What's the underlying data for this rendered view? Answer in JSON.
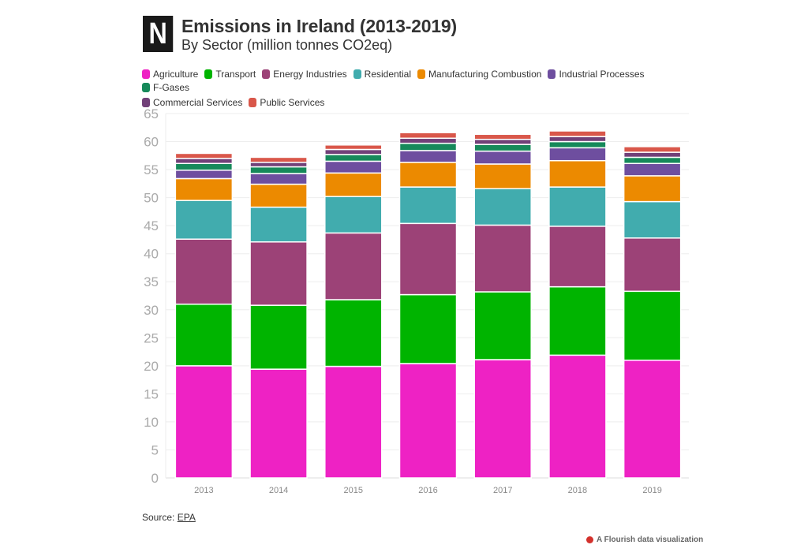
{
  "header": {
    "logo_letter": "N",
    "title": "Emissions in Ireland (2013-2019)",
    "subtitle": "By Sector (million tonnes CO2eq)"
  },
  "footer": {
    "source_prefix": "Source: ",
    "source_link": "EPA",
    "credit": "A Flourish data visualization"
  },
  "chart_data": {
    "type": "bar",
    "stacked": true,
    "title": "Emissions in Ireland (2013-2019)",
    "subtitle": "By Sector (million tonnes CO2eq)",
    "xlabel": "",
    "ylabel": "",
    "ylim": [
      0,
      65
    ],
    "yticks": [
      0,
      5,
      10,
      15,
      20,
      25,
      30,
      35,
      40,
      45,
      50,
      55,
      60,
      65
    ],
    "grid": true,
    "legend_position": "top-left",
    "categories": [
      "2013",
      "2014",
      "2015",
      "2016",
      "2017",
      "2018",
      "2019"
    ],
    "series": [
      {
        "name": "Agriculture",
        "color": "#ee22c4",
        "values": [
          20.0,
          19.4,
          19.9,
          20.4,
          21.1,
          21.9,
          21.0
        ]
      },
      {
        "name": "Transport",
        "color": "#00b400",
        "values": [
          11.0,
          11.4,
          11.9,
          12.3,
          12.1,
          12.2,
          12.3
        ]
      },
      {
        "name": "Energy Industries",
        "color": "#9c4277",
        "values": [
          11.6,
          11.3,
          11.9,
          12.7,
          11.9,
          10.8,
          9.5
        ]
      },
      {
        "name": "Residential",
        "color": "#41acae",
        "values": [
          6.9,
          6.2,
          6.5,
          6.5,
          6.5,
          7.0,
          6.5
        ]
      },
      {
        "name": "Manufacturing Combustion",
        "color": "#ec8a00",
        "values": [
          3.9,
          4.1,
          4.2,
          4.4,
          4.4,
          4.7,
          4.6
        ]
      },
      {
        "name": "Industrial Processes",
        "color": "#6e4e9f",
        "values": [
          1.5,
          1.9,
          2.1,
          2.1,
          2.3,
          2.3,
          2.2
        ]
      },
      {
        "name": "F-Gases",
        "color": "#16895a",
        "values": [
          1.2,
          1.2,
          1.2,
          1.3,
          1.2,
          1.1,
          1.1
        ]
      },
      {
        "name": "Commercial Services",
        "color": "#714078",
        "values": [
          0.9,
          0.8,
          0.9,
          0.9,
          0.9,
          0.9,
          0.9
        ]
      },
      {
        "name": "Public Services",
        "color": "#d9574a",
        "values": [
          0.9,
          0.9,
          0.8,
          1.0,
          0.9,
          1.0,
          1.0
        ]
      }
    ]
  }
}
